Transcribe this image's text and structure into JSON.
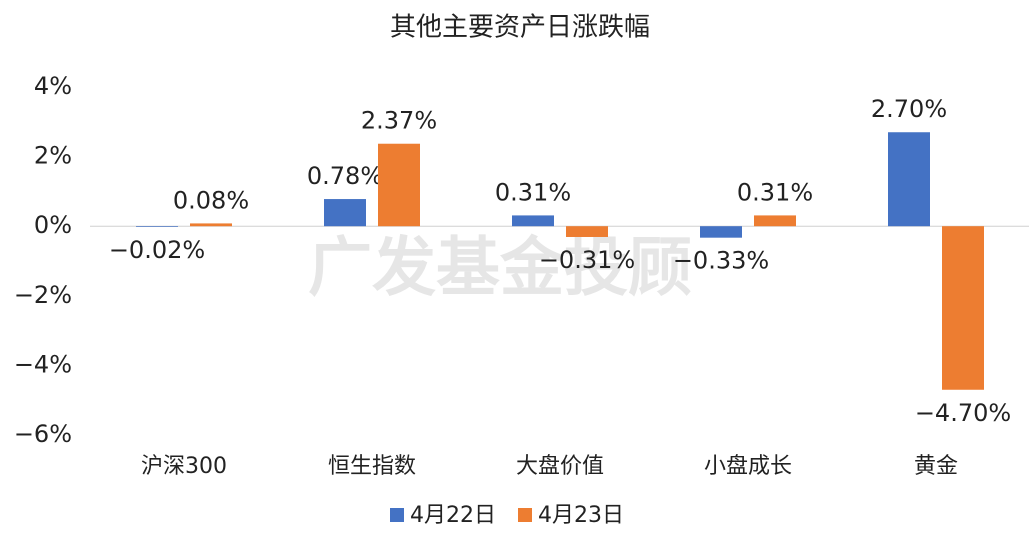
{
  "chart_data": {
    "type": "bar",
    "title": "其他主要资产日涨跌幅",
    "watermark": "广发基金投顾",
    "categories": [
      "沪深300",
      "恒生指数",
      "大盘价值",
      "小盘成长",
      "黄金"
    ],
    "series": [
      {
        "name": "4月22日",
        "color": "#4472c4",
        "values": [
          -0.02,
          0.78,
          0.31,
          -0.33,
          2.7
        ],
        "value_labels": [
          "−0.02%",
          "0.78%",
          "0.31%",
          "−0.33%",
          "2.70%"
        ]
      },
      {
        "name": "4月23日",
        "color": "#ed7d31",
        "values": [
          0.08,
          2.37,
          -0.31,
          0.31,
          -4.7
        ],
        "value_labels": [
          "0.08%",
          "2.37%",
          "−0.31%",
          "0.31%",
          "−4.70%"
        ]
      }
    ],
    "ylim": [
      -6,
      4
    ],
    "yticks": [
      {
        "value": 4,
        "label": "4%"
      },
      {
        "value": 2,
        "label": "2%"
      },
      {
        "value": 0,
        "label": "0%"
      },
      {
        "value": -2,
        "label": "−2%"
      },
      {
        "value": -4,
        "label": "−4%"
      },
      {
        "value": -6,
        "label": "−6%"
      }
    ],
    "grid": false,
    "legend": "bottom"
  }
}
